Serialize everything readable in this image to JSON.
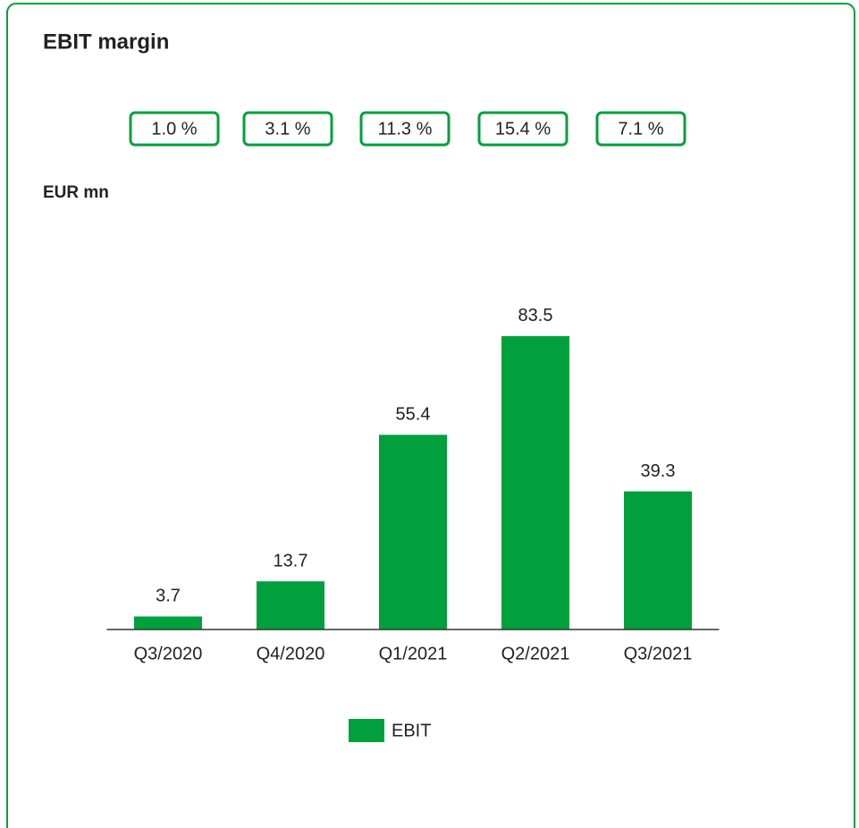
{
  "chart_data": {
    "type": "bar",
    "title": "EBIT margin",
    "ylabel": "EUR mn",
    "margins": {
      "values": [
        1.0,
        3.1,
        11.3,
        15.4,
        7.1
      ],
      "value_labels": [
        "1.0 %",
        "3.1 %",
        "11.3 %",
        "15.4 %",
        "7.1 %"
      ]
    },
    "categories": [
      "Q3/2020",
      "Q4/2020",
      "Q1/2021",
      "Q2/2021",
      "Q3/2021"
    ],
    "series": [
      {
        "name": "EBIT",
        "color": "#00a03c",
        "values": [
          3.7,
          13.7,
          55.4,
          83.5,
          39.3
        ]
      }
    ],
    "ylim": [
      0,
      100
    ],
    "legend": "bottom"
  }
}
